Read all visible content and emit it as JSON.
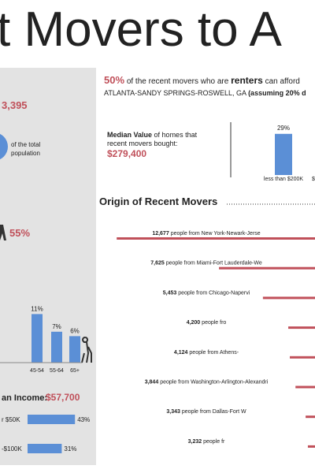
{
  "header": {
    "title": "t Movers to A"
  },
  "left_panel": {
    "total": "3,395",
    "population_note": [
      "of the total",
      "population"
    ],
    "percent": "55%",
    "age_bars": [
      {
        "value": 11,
        "value_label": "11%",
        "label": "45-54"
      },
      {
        "value": 7,
        "value_label": "7%",
        "label": "55-64"
      },
      {
        "value": 6,
        "value_label": "6%",
        "label": "65+"
      }
    ],
    "income_title": "an Income:",
    "income_value": "$57,700",
    "income_bars": [
      {
        "label": "r $50K",
        "value": 43,
        "value_label": "43%"
      },
      {
        "label": "-$100K",
        "value": 31,
        "value_label": "31%"
      }
    ]
  },
  "summary": {
    "percent": "50%",
    "text1": "of the recent movers who are",
    "renters": "renters",
    "text2": "can afford",
    "line2": "ATLANTA-SANDY SPRINGS-ROSWELL, GA",
    "line2_note": "(assuming 20% d"
  },
  "median": {
    "label_bold": "Median Value",
    "label_rest": "of homes that",
    "label_line2": "recent movers bought:",
    "value": "$279,400"
  },
  "price_chart": {
    "bars": [
      {
        "value": 29,
        "value_label": "29%",
        "label": "less than $200K"
      }
    ],
    "next_label": "$"
  },
  "origins": {
    "title": "Origin of Recent Movers",
    "items": [
      {
        "value": 12677,
        "value_label": "12,677",
        "text": "people from New York-Newark-Jerse"
      },
      {
        "value": 7625,
        "value_label": "7,625",
        "text": "people from Miami-Fort Lauderdale-We"
      },
      {
        "value": 5453,
        "value_label": "5,453",
        "text": "people from Chicago-Napervi"
      },
      {
        "value": 4200,
        "value_label": "4,200",
        "text": "people fro"
      },
      {
        "value": 4124,
        "value_label": "4,124",
        "text": "people from Athens-"
      },
      {
        "value": 3844,
        "value_label": "3,844",
        "text": "people from Washington-Arlington-Alexandri"
      },
      {
        "value": 3343,
        "value_label": "3,343",
        "text": "people from Dallas-Fort W"
      },
      {
        "value": 3232,
        "value_label": "3,232",
        "text": "people fr"
      }
    ]
  }
}
